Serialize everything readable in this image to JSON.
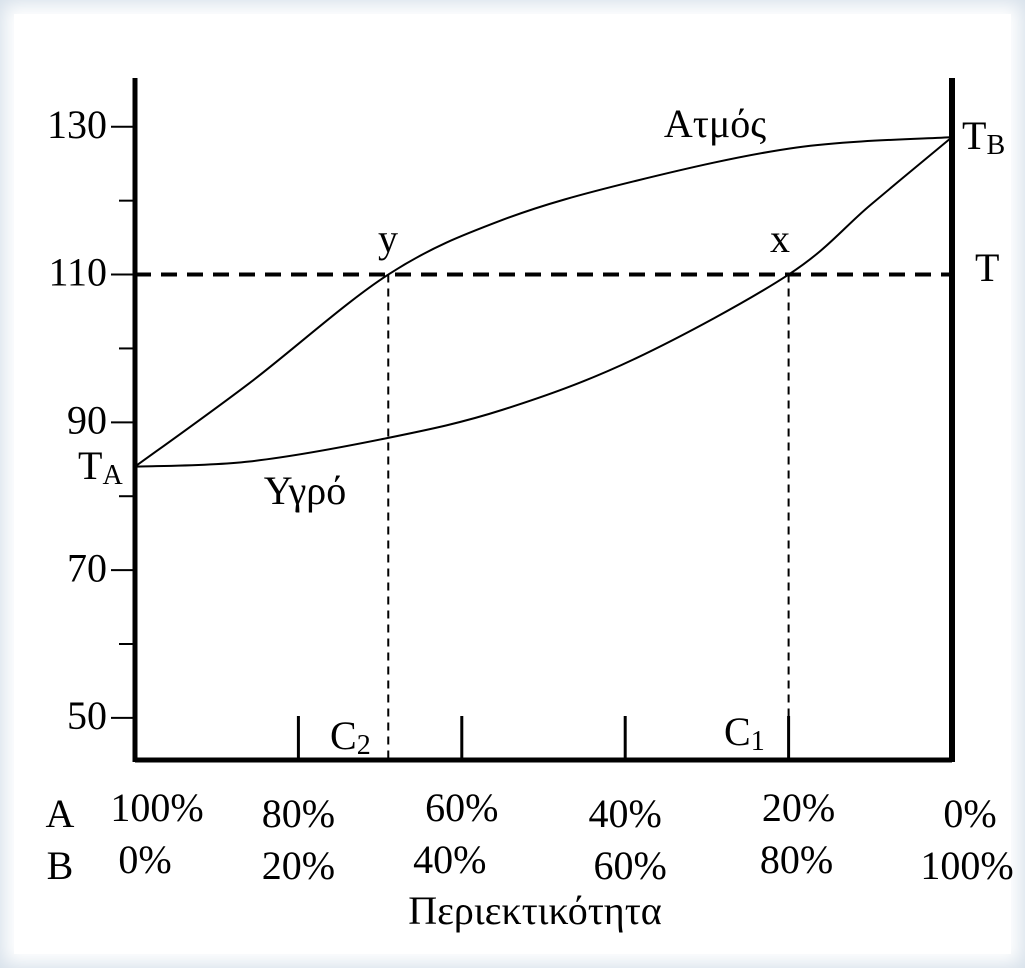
{
  "chart_data": {
    "type": "line",
    "xlabel": "Περιεκτικότητα",
    "xlim": [
      0,
      100
    ],
    "ylim": [
      44.3,
      136.6
    ],
    "xticks": [
      0,
      20,
      40,
      60,
      80,
      100
    ],
    "xtick_rows": [
      {
        "name": "A",
        "labels": [
          "100%",
          "80%",
          "60%",
          "40%",
          "20%",
          "0%"
        ]
      },
      {
        "name": "B",
        "labels": [
          "0%",
          "20%",
          "40%",
          "60%",
          "80%",
          "100%"
        ]
      }
    ],
    "yticks": [
      130,
      110,
      90,
      70,
      50
    ],
    "minor_yticks": [
      120,
      100,
      80,
      60
    ],
    "color": "#000000",
    "series": [
      {
        "name": "Ατμός",
        "x": [
          0,
          14,
          31,
          45,
          61,
          81,
          100
        ],
        "values": [
          84,
          95.3,
          110,
          117.4,
          122.6,
          127.2,
          128.6
        ]
      },
      {
        "name": "Υγρό",
        "x": [
          0,
          14,
          31,
          45,
          61,
          80,
          90,
          100
        ],
        "values": [
          84,
          84.7,
          87.9,
          91.7,
          98.5,
          110,
          119.4,
          128.6
        ]
      }
    ],
    "hline": 110,
    "vlines": [
      31,
      80
    ],
    "annotations": [
      {
        "text": "y"
      },
      {
        "text": "x"
      },
      {
        "text": "T"
      },
      {
        "text": "T",
        "sub": "A"
      },
      {
        "text": "T",
        "sub": "B"
      },
      {
        "text": "C",
        "sub": "2"
      },
      {
        "text": "C",
        "sub": "1"
      }
    ]
  }
}
